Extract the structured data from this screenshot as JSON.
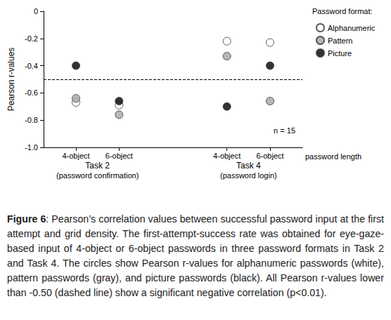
{
  "chart_data": {
    "type": "scatter",
    "categories": [
      null,
      "4-object",
      null,
      "6-object",
      null,
      null,
      null,
      null,
      "4-object",
      null,
      "6-object",
      null
    ],
    "x_label": "password length",
    "y_label": "Pearson r-values",
    "groups": [
      {
        "label": "Task 2",
        "sublabel": "(password confirmation)"
      },
      {
        "label": "Task 4",
        "sublabel": "(password login)"
      }
    ],
    "legend_title": "Password format:",
    "legend": "right",
    "annotation": "n = 15",
    "reference_line": -0.5,
    "ylim": [
      -1,
      0
    ],
    "yticks": [
      {
        "value": -1,
        "label": "-1.0"
      },
      -0.8,
      -0.6,
      -0.4,
      -0.2,
      0
    ],
    "series": [
      {
        "name": "Alphanumeric",
        "color": "#ffffff",
        "marker": "circle",
        "values": [
          null,
          -0.67,
          null,
          -0.69,
          null,
          null,
          null,
          null,
          -0.22,
          null,
          -0.23,
          null
        ]
      },
      {
        "name": "Pattern",
        "color": "#a6a6a6",
        "marker": "circle",
        "values": [
          null,
          -0.64,
          null,
          -0.76,
          null,
          null,
          null,
          null,
          -0.33,
          null,
          -0.66,
          null
        ]
      },
      {
        "name": "Picture",
        "color": "#000000",
        "marker": "circle",
        "values": [
          null,
          -0.4,
          null,
          -0.66,
          null,
          null,
          null,
          null,
          -0.7,
          null,
          -0.4,
          null
        ]
      }
    ]
  },
  "caption": {
    "label": "Figure 6",
    "text": ": Pearson’s correlation values between successful password input at the first attempt and grid density. The first-attempt-success rate was obtained for eye-gaze-based input of 4-object or 6-object passwords in three password formats in Task 2 and Task 4. The circles show Pearson r-values for alphanumeric passwords (white), pattern passwords (gray), and picture passwords (black). All Pearson r-values lower than -0.50 (dashed line) show a significant negative correlation (p<0.01)."
  }
}
